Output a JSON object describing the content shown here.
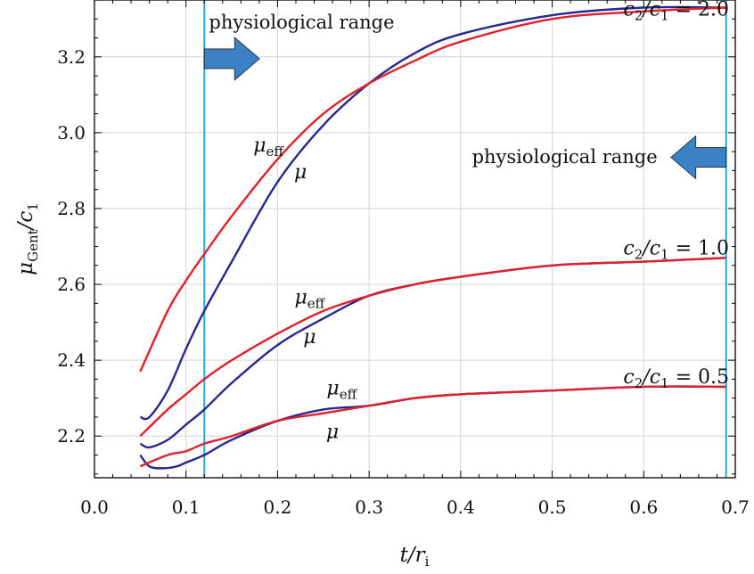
{
  "chart_data": {
    "type": "line",
    "xlabel": "t/r_i",
    "ylabel": "μ_Gent/c_1",
    "xlim": [
      0.0,
      0.7
    ],
    "ylim": [
      2.09,
      3.35
    ],
    "xticks": [
      "0.0",
      "0.1",
      "0.2",
      "0.3",
      "0.4",
      "0.5",
      "0.6",
      "0.7"
    ],
    "yticks": [
      "2.2",
      "2.4",
      "2.6",
      "2.8",
      "3.0",
      "3.2"
    ],
    "grid": true,
    "colors": {
      "mu": "#27288f",
      "mu_eff": "#e0202a",
      "range_line": "#27a6e6",
      "arrow": "#3b82c4"
    },
    "vlines": [
      0.12,
      0.69
    ],
    "groups": [
      {
        "label": "c₂/c₁ = 2.0",
        "label_prefix": "c",
        "label_s1": "2",
        "label_mid": "/c",
        "label_s2": "1",
        "label_value": " = 2.0",
        "mu_eff": {
          "x": [
            0.05,
            0.08,
            0.1,
            0.12,
            0.15,
            0.2,
            0.25,
            0.3,
            0.35,
            0.4,
            0.5,
            0.6,
            0.69
          ],
          "y": [
            2.37,
            2.53,
            2.61,
            2.68,
            2.78,
            2.93,
            3.05,
            3.13,
            3.19,
            3.24,
            3.3,
            3.32,
            3.33
          ]
        },
        "mu": {
          "x": [
            0.05,
            0.06,
            0.08,
            0.1,
            0.12,
            0.15,
            0.2,
            0.25,
            0.3,
            0.35,
            0.4,
            0.5,
            0.6,
            0.69
          ],
          "y": [
            2.25,
            2.25,
            2.32,
            2.43,
            2.53,
            2.66,
            2.87,
            3.02,
            3.13,
            3.21,
            3.26,
            3.31,
            3.33,
            3.33
          ]
        }
      },
      {
        "label": "c₂/c₁ = 1.0",
        "label_prefix": "c",
        "label_s1": "2",
        "label_mid": "/c",
        "label_s2": "1",
        "label_value": " = 1.0",
        "mu_eff": {
          "x": [
            0.05,
            0.08,
            0.1,
            0.12,
            0.15,
            0.2,
            0.25,
            0.3,
            0.35,
            0.4,
            0.5,
            0.6,
            0.69
          ],
          "y": [
            2.2,
            2.27,
            2.31,
            2.35,
            2.4,
            2.47,
            2.53,
            2.57,
            2.6,
            2.62,
            2.65,
            2.66,
            2.67
          ]
        },
        "mu": {
          "x": [
            0.05,
            0.06,
            0.08,
            0.1,
            0.12,
            0.15,
            0.2,
            0.25,
            0.3,
            0.35,
            0.4,
            0.5,
            0.6,
            0.69
          ],
          "y": [
            2.18,
            2.17,
            2.19,
            2.23,
            2.27,
            2.34,
            2.44,
            2.51,
            2.57,
            2.6,
            2.62,
            2.65,
            2.66,
            2.67
          ]
        }
      },
      {
        "label": "c₂/c₁ = 0.5",
        "label_prefix": "c",
        "label_s1": "2",
        "label_mid": "/c",
        "label_s2": "1",
        "label_value": " = 0.5",
        "mu_eff": {
          "x": [
            0.05,
            0.08,
            0.1,
            0.12,
            0.15,
            0.2,
            0.25,
            0.3,
            0.35,
            0.4,
            0.5,
            0.6,
            0.69
          ],
          "y": [
            2.12,
            2.15,
            2.16,
            2.18,
            2.2,
            2.24,
            2.26,
            2.28,
            2.3,
            2.31,
            2.32,
            2.33,
            2.33
          ]
        },
        "mu": {
          "x": [
            0.05,
            0.06,
            0.075,
            0.09,
            0.1,
            0.12,
            0.15,
            0.2,
            0.25,
            0.3,
            0.35,
            0.4,
            0.5,
            0.6,
            0.69
          ],
          "y": [
            2.15,
            2.12,
            2.115,
            2.12,
            2.13,
            2.15,
            2.19,
            2.24,
            2.27,
            2.28,
            2.3,
            2.31,
            2.32,
            2.33,
            2.33
          ]
        }
      }
    ],
    "curve_labels": [
      {
        "kind": "mu_eff",
        "x": 0.19,
        "y": 2.95
      },
      {
        "kind": "mu",
        "x": 0.225,
        "y": 2.88
      },
      {
        "kind": "mu_eff",
        "x": 0.235,
        "y": 2.55
      },
      {
        "kind": "mu",
        "x": 0.235,
        "y": 2.445
      },
      {
        "kind": "mu_eff",
        "x": 0.27,
        "y": 2.31
      },
      {
        "kind": "mu",
        "x": 0.26,
        "y": 2.195
      }
    ],
    "mu_symbol": "μ",
    "eff_sub": "eff",
    "annotations": [
      {
        "text": "physiological range",
        "x": 0.125,
        "y": 3.275,
        "anchor": "start"
      },
      {
        "text": "physiological range",
        "x": 0.615,
        "y": 2.92,
        "anchor": "end"
      }
    ]
  }
}
